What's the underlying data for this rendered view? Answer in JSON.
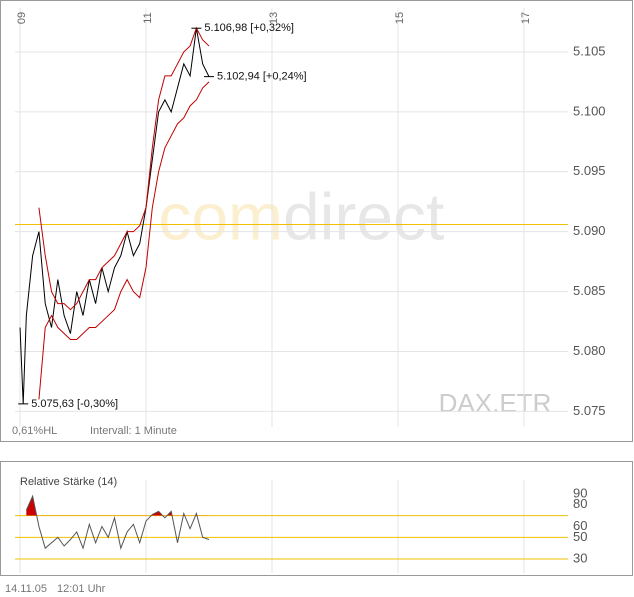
{
  "chart_data": [
    {
      "type": "line",
      "source": "DAX.ETR",
      "range_note": "0,61%HL",
      "interval_note": "Intervall: 1 Minute",
      "watermark": [
        "com",
        "direct"
      ],
      "x": [
        9.0,
        9.05,
        9.1,
        9.2,
        9.3,
        9.4,
        9.5,
        9.6,
        9.7,
        9.8,
        9.9,
        10.0,
        10.1,
        10.2,
        10.3,
        10.4,
        10.5,
        10.6,
        10.7,
        10.8,
        10.9,
        11.0,
        11.1,
        11.2,
        11.3,
        11.4,
        11.5,
        11.6,
        11.7,
        11.8,
        11.9,
        12.0
      ],
      "series": [
        {
          "color": "#000000",
          "values": [
            5082,
            5075.63,
            5083,
            5088,
            5090,
            5084,
            5082,
            5086,
            5083,
            5081.5,
            5085,
            5083,
            5086,
            5084,
            5087,
            5085,
            5087,
            5088,
            5090,
            5088,
            5089,
            5092,
            5096,
            5100,
            5101,
            5100,
            5102,
            5104,
            5103,
            5106.98,
            5104,
            5102.94
          ]
        },
        {
          "color": "#c00000",
          "values": [
            null,
            null,
            null,
            null,
            5092,
            5088,
            5085,
            5084,
            5084,
            5083.5,
            5084,
            5085,
            5086,
            5086,
            5087,
            5087.5,
            5088,
            5089,
            5090,
            5090,
            5090.5,
            5092,
            5097,
            5101,
            5103,
            5103,
            5104,
            5105,
            5105.5,
            5107,
            5106,
            5105.5
          ]
        },
        {
          "color": "#c00000",
          "values": [
            null,
            null,
            null,
            null,
            5076,
            5082,
            5083,
            5082,
            5081.5,
            5081,
            5081,
            5081.5,
            5082,
            5082,
            5082.5,
            5083,
            5083.5,
            5085,
            5086,
            5085,
            5084.5,
            5087,
            5092,
            5095,
            5097,
            5098,
            5099,
            5099.5,
            5100.5,
            5101,
            5102,
            5102.5
          ]
        }
      ],
      "xlim": [
        8.92,
        17.7
      ],
      "xticks": [
        {
          "value": 9,
          "label": "09"
        },
        11,
        13,
        15,
        17
      ],
      "ylim": [
        5073.7,
        5108.5
      ],
      "yticks": [
        {
          "value": 5075,
          "label": "5.075"
        },
        {
          "value": 5080,
          "label": "5.080"
        },
        {
          "value": 5085,
          "label": "5.085"
        },
        {
          "value": 5090,
          "label": "5.090"
        },
        {
          "value": 5095,
          "label": "5.095"
        },
        {
          "value": 5100,
          "label": "5.100"
        },
        {
          "value": 5105,
          "label": "5.105"
        }
      ],
      "reference_lines": [
        {
          "value": 5090.6,
          "color": "#f0c000"
        }
      ],
      "annotations": [
        {
          "x": 11.8,
          "y": 5106.98,
          "text": "5.106,98 [+0,32%]"
        },
        {
          "x": 12.0,
          "y": 5102.94,
          "text": "5.102,94 [+0,24%]"
        },
        {
          "x": 9.05,
          "y": 5075.63,
          "text": "5.075,63 [-0,30%]"
        }
      ],
      "grid": true
    },
    {
      "type": "line",
      "title": "Relative Stärke (14)",
      "x": [
        9.1,
        9.2,
        9.3,
        9.4,
        9.5,
        9.6,
        9.7,
        9.8,
        9.9,
        10.0,
        10.1,
        10.2,
        10.3,
        10.4,
        10.5,
        10.6,
        10.7,
        10.8,
        10.9,
        11.0,
        11.1,
        11.2,
        11.3,
        11.4,
        11.5,
        11.6,
        11.7,
        11.8,
        11.9,
        12.0
      ],
      "series": [
        {
          "color": "#555555",
          "fill_color": "#cc0000",
          "values": [
            75,
            88,
            60,
            40,
            45,
            50,
            42,
            48,
            55,
            40,
            62,
            45,
            60,
            50,
            68,
            40,
            55,
            62,
            45,
            65,
            71,
            74,
            68,
            74,
            45,
            72,
            58,
            72,
            50,
            48
          ]
        }
      ],
      "xlim": [
        8.92,
        17.7
      ],
      "xticks": [
        9,
        11,
        13,
        15,
        17
      ],
      "ylim": [
        24.5,
        95.5
      ],
      "yticks": [
        30,
        50,
        60,
        80,
        90
      ],
      "reference_lines": [
        {
          "value": 70,
          "color": "#f0c000"
        },
        {
          "value": 50,
          "color": "#f0c000"
        },
        {
          "value": 30,
          "color": "#f0c000"
        }
      ],
      "grid": true
    }
  ],
  "footer": {
    "date": "14.11.05",
    "time": "12:01 Uhr"
  }
}
